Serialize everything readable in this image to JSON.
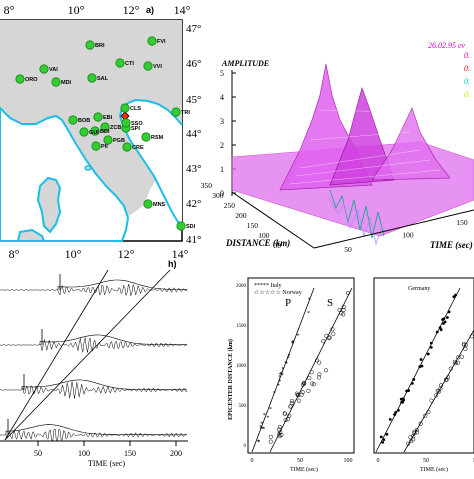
{
  "panel_a": {
    "label": "a)",
    "lon_ticks": [
      "8°",
      "10°",
      "12°",
      "14°"
    ],
    "lat_ticks": [
      "47°",
      "46°",
      "45°",
      "44°",
      "43°",
      "42°",
      "41°"
    ],
    "stations": [
      {
        "code": "BRI"
      },
      {
        "code": "FVI"
      },
      {
        "code": "VAI"
      },
      {
        "code": "CTI"
      },
      {
        "code": "VVI"
      },
      {
        "code": "MDI"
      },
      {
        "code": "SAL"
      },
      {
        "code": "ORO"
      },
      {
        "code": "TRI"
      },
      {
        "code": "CLS"
      },
      {
        "code": "EBI"
      },
      {
        "code": "BOB"
      },
      {
        "code": "ZCB"
      },
      {
        "code": "BDI"
      },
      {
        "code": "GUI"
      },
      {
        "code": "SPI"
      },
      {
        "code": "SSO"
      },
      {
        "code": "PGB"
      },
      {
        "code": "PII"
      },
      {
        "code": "RSM"
      },
      {
        "code": "CRE"
      },
      {
        "code": "MNS"
      },
      {
        "code": "SDI"
      }
    ]
  },
  "panel_3d": {
    "z_title": "AMPLITUDE",
    "date": "26.02.95 ev",
    "z_ticks": [
      "5",
      "4",
      "3",
      "2",
      "1",
      "0"
    ],
    "distance_ticks": [
      "350",
      "300",
      "250",
      "200",
      "150",
      "100",
      "50"
    ],
    "distance_label": "DISTANCE (km)",
    "time_ticks": [
      "50",
      "100",
      "150"
    ],
    "time_label": "TIME (sec)",
    "legend": [
      {
        "text": "0.",
        "color": "#cc0099"
      },
      {
        "text": "0.",
        "color": "#ff0000"
      },
      {
        "text": "0.",
        "color": "#00cccc"
      },
      {
        "text": "0.",
        "color": "#dddd00"
      }
    ]
  },
  "panel_h": {
    "label": "h)",
    "time_ticks": [
      "50",
      "100",
      "150",
      "200"
    ],
    "xlabel": "TIME (sec)"
  },
  "panel_italy_norway": {
    "legend_italy": "***** Italy",
    "legend_norway": "☆☆☆☆☆ Norway",
    "ylabel": "EPICENTER DISTANCE (km)",
    "y_ticks": [
      "2000",
      "1500",
      "1000",
      "500",
      "0"
    ],
    "x_ticks": [
      "0",
      "50",
      "100"
    ],
    "xlabel": "TIME (sec)",
    "label_p": "P",
    "label_s": "S"
  },
  "panel_germany": {
    "title": "Germany",
    "x_ticks": [
      "0",
      "50",
      "1"
    ],
    "xlabel": "TIME (sec)"
  }
}
